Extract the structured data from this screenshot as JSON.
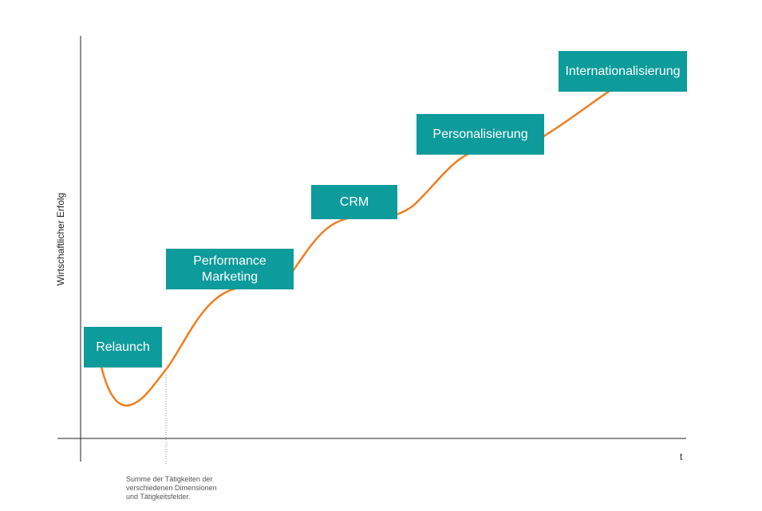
{
  "diagram": {
    "y_axis_label": "Wirtschaftlicher Erfolg",
    "x_axis_label": "t",
    "footnote_lines": [
      "Summe der Tätigkeiten der",
      "verschiedenen Dimensionen",
      "und Tätigkeitsfelder."
    ],
    "stages": [
      {
        "lines": [
          "Relaunch"
        ]
      },
      {
        "lines": [
          "Performance",
          "Marketing"
        ]
      },
      {
        "lines": [
          "CRM"
        ]
      },
      {
        "lines": [
          "Personalisierung"
        ]
      },
      {
        "lines": [
          "Internationalisierung"
        ]
      }
    ]
  },
  "colors": {
    "box_fill": "#0e9b9b",
    "box_text": "#ffffff",
    "curve": "#f07d1f",
    "axis": "#222222",
    "dotted_marker": "#888888"
  }
}
